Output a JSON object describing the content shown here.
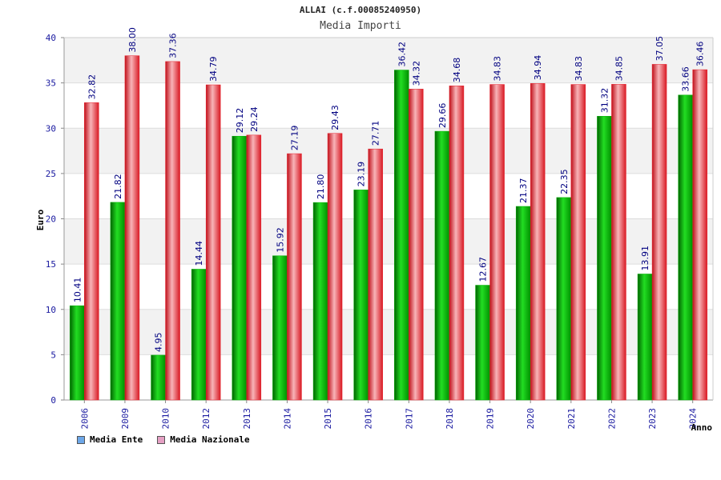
{
  "header": {
    "title": "ALLAI (c.f.00085240950)",
    "subtitle": "Media Importi"
  },
  "legend": {
    "items": [
      {
        "label": "Media Ente",
        "color": "#6da7e8"
      },
      {
        "label": "Media Nazionale",
        "color": "#e5a0c4"
      }
    ]
  },
  "colors": {
    "ente_bar": "#00b000",
    "nazionale_bar": "#e8202c",
    "value_label": "#000080",
    "tick_label": "#1a1aa0",
    "band": "#f2f2f2"
  },
  "chart_data": {
    "type": "bar",
    "xlabel": "Anno",
    "ylabel": "Euro",
    "ylim": [
      0,
      40
    ],
    "yticks": [
      0,
      5,
      10,
      15,
      20,
      25,
      30,
      35,
      40
    ],
    "grid": true,
    "legend_position": "bottom-left",
    "categories": [
      "2006",
      "2009",
      "2010",
      "2012",
      "2013",
      "2014",
      "2015",
      "2016",
      "2017",
      "2018",
      "2019",
      "2020",
      "2021",
      "2022",
      "2023",
      "2024"
    ],
    "series": [
      {
        "name": "Media Ente",
        "values": [
          10.41,
          21.82,
          4.95,
          14.44,
          29.12,
          15.92,
          21.8,
          23.19,
          36.42,
          29.66,
          12.67,
          21.37,
          22.35,
          31.32,
          13.91,
          33.66
        ],
        "labels": [
          "10.41",
          "21.82",
          "4.95",
          "14.44",
          "29.12",
          "15.92",
          "21.80",
          "23.19",
          "36.42",
          "29.66",
          "12.67",
          "21.37",
          "22.35",
          "31.32",
          "13.91",
          "33.66"
        ]
      },
      {
        "name": "Media Nazionale",
        "values": [
          32.82,
          38.0,
          37.36,
          34.79,
          29.24,
          27.19,
          29.43,
          27.71,
          34.32,
          34.68,
          34.83,
          34.94,
          34.83,
          34.85,
          37.05,
          36.46
        ],
        "labels": [
          "32.82",
          "38.00",
          "37.36",
          "34.79",
          "29.24",
          "27.19",
          "29.43",
          "27.71",
          "34.32",
          "34.68",
          "34.83",
          "34.94",
          "34.83",
          "34.85",
          "37.05",
          "36.46"
        ]
      }
    ]
  }
}
